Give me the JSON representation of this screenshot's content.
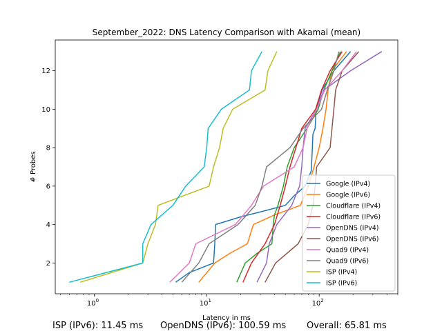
{
  "chart_data": {
    "type": "line",
    "title": "September_2022: DNS Latency Comparison with Akamai (mean)",
    "xlabel": "Latency in ms",
    "ylabel": "# Probes",
    "xscale": "log",
    "xlim": [
      0.45,
      500
    ],
    "ylim": [
      0.4,
      13.6
    ],
    "xticks": [
      1,
      10,
      100
    ],
    "xticklabels": [
      "10^0",
      "10^1",
      "10^2"
    ],
    "yticks": [
      2,
      4,
      6,
      8,
      10,
      12
    ],
    "legend_position": "lower-right",
    "grid": false,
    "series": [
      {
        "name": "Google (IPv4)",
        "color": "#1f77b4",
        "points": [
          [
            5.3,
            1
          ],
          [
            7,
            1.5
          ],
          [
            11.5,
            2
          ],
          [
            11.8,
            3
          ],
          [
            12,
            4
          ],
          [
            20,
            4.4
          ],
          [
            32,
            4.7
          ],
          [
            50,
            5
          ],
          [
            60,
            5.5
          ],
          [
            75,
            6
          ],
          [
            85,
            6.8
          ],
          [
            87,
            8
          ],
          [
            88,
            8.7
          ],
          [
            92,
            9
          ],
          [
            94,
            10
          ],
          [
            106,
            11
          ],
          [
            135,
            12
          ],
          [
            190,
            13
          ]
        ]
      },
      {
        "name": "Google (IPv6)",
        "color": "#ff7f0e",
        "points": [
          [
            8.5,
            1
          ],
          [
            11.8,
            2
          ],
          [
            16,
            2.5
          ],
          [
            23,
            3
          ],
          [
            26,
            4
          ],
          [
            40,
            4.5
          ],
          [
            68,
            5
          ],
          [
            80,
            6
          ],
          [
            90,
            7
          ],
          [
            100,
            8
          ],
          [
            108,
            9
          ],
          [
            115,
            10
          ],
          [
            120,
            11
          ],
          [
            130,
            12
          ],
          [
            175,
            13
          ]
        ]
      },
      {
        "name": "Cloudflare (IPv4)",
        "color": "#2ca02c",
        "points": [
          [
            18.5,
            1
          ],
          [
            22,
            2
          ],
          [
            28,
            2.5
          ],
          [
            38,
            3
          ],
          [
            39,
            4
          ],
          [
            40,
            4.5
          ],
          [
            43,
            5
          ],
          [
            48,
            6
          ],
          [
            52,
            7
          ],
          [
            60,
            8
          ],
          [
            78,
            9
          ],
          [
            98,
            10
          ],
          [
            110,
            11
          ],
          [
            130,
            12
          ],
          [
            155,
            13
          ]
        ]
      },
      {
        "name": "Cloudflare (IPv6)",
        "color": "#d62728",
        "points": [
          [
            21,
            1
          ],
          [
            25,
            2
          ],
          [
            33,
            3
          ],
          [
            40,
            4
          ],
          [
            45,
            5
          ],
          [
            50,
            6
          ],
          [
            55,
            7
          ],
          [
            62,
            8
          ],
          [
            70,
            9
          ],
          [
            93,
            10
          ],
          [
            105,
            11
          ],
          [
            125,
            12
          ],
          [
            160,
            13
          ]
        ]
      },
      {
        "name": "OpenDNS (IPv4)",
        "color": "#9467bd",
        "points": [
          [
            28,
            1
          ],
          [
            34,
            2
          ],
          [
            36,
            3
          ],
          [
            42,
            4
          ],
          [
            57,
            5
          ],
          [
            67,
            6
          ],
          [
            70,
            7
          ],
          [
            72,
            8
          ],
          [
            75,
            9
          ],
          [
            95,
            10
          ],
          [
            110,
            11
          ],
          [
            190,
            12
          ],
          [
            360,
            13
          ]
        ]
      },
      {
        "name": "OpenDNS (IPv6)",
        "color": "#8c564b",
        "points": [
          [
            33,
            1
          ],
          [
            41,
            2
          ],
          [
            65,
            3
          ],
          [
            80,
            4
          ],
          [
            88,
            5
          ],
          [
            92,
            6
          ],
          [
            95,
            7
          ],
          [
            125,
            8
          ],
          [
            130,
            9
          ],
          [
            135,
            10
          ],
          [
            140,
            11
          ],
          [
            160,
            12
          ],
          [
            225,
            13
          ]
        ]
      },
      {
        "name": "Quad9 (IPv4)",
        "color": "#e377c2",
        "points": [
          [
            4.7,
            1
          ],
          [
            7,
            2
          ],
          [
            8,
            3
          ],
          [
            18,
            4
          ],
          [
            25,
            5
          ],
          [
            32,
            6
          ],
          [
            60,
            7
          ],
          [
            72,
            8
          ],
          [
            78,
            9
          ],
          [
            95,
            10
          ],
          [
            112,
            11
          ],
          [
            160,
            12
          ],
          [
            215,
            13
          ]
        ]
      },
      {
        "name": "Quad9 (IPv6)",
        "color": "#7f7f7f",
        "points": [
          [
            6,
            1
          ],
          [
            8.5,
            2
          ],
          [
            10.5,
            3
          ],
          [
            19,
            4
          ],
          [
            27,
            5
          ],
          [
            31,
            6
          ],
          [
            34,
            7
          ],
          [
            55,
            8
          ],
          [
            72,
            9
          ],
          [
            105,
            10
          ],
          [
            118,
            11
          ],
          [
            135,
            12
          ],
          [
            150,
            13
          ]
        ]
      },
      {
        "name": "ISP (IPv4)",
        "color": "#bcbd22",
        "points": [
          [
            0.75,
            1
          ],
          [
            2.7,
            2
          ],
          [
            3,
            3
          ],
          [
            3.5,
            4
          ],
          [
            3.7,
            5
          ],
          [
            10.5,
            6
          ],
          [
            11.5,
            7
          ],
          [
            13,
            8
          ],
          [
            14,
            9
          ],
          [
            17,
            10
          ],
          [
            33,
            11
          ],
          [
            35,
            12
          ],
          [
            42,
            13
          ]
        ]
      },
      {
        "name": "ISP (IPv6)",
        "color": "#17becf",
        "points": [
          [
            0.6,
            1
          ],
          [
            2.7,
            2
          ],
          [
            2.7,
            3
          ],
          [
            3.2,
            4
          ],
          [
            5,
            5
          ],
          [
            6.5,
            6
          ],
          [
            9.5,
            7
          ],
          [
            10,
            8
          ],
          [
            10.3,
            9
          ],
          [
            13.5,
            10
          ],
          [
            24,
            11
          ],
          [
            25,
            12
          ],
          [
            31,
            13
          ]
        ]
      }
    ]
  },
  "footer": {
    "isp_ipv6": "ISP (IPv6): 11.45 ms",
    "opendns_ipv6": "OpenDNS (IPv6): 100.59 ms",
    "overall": "Overall: 65.81 ms"
  }
}
